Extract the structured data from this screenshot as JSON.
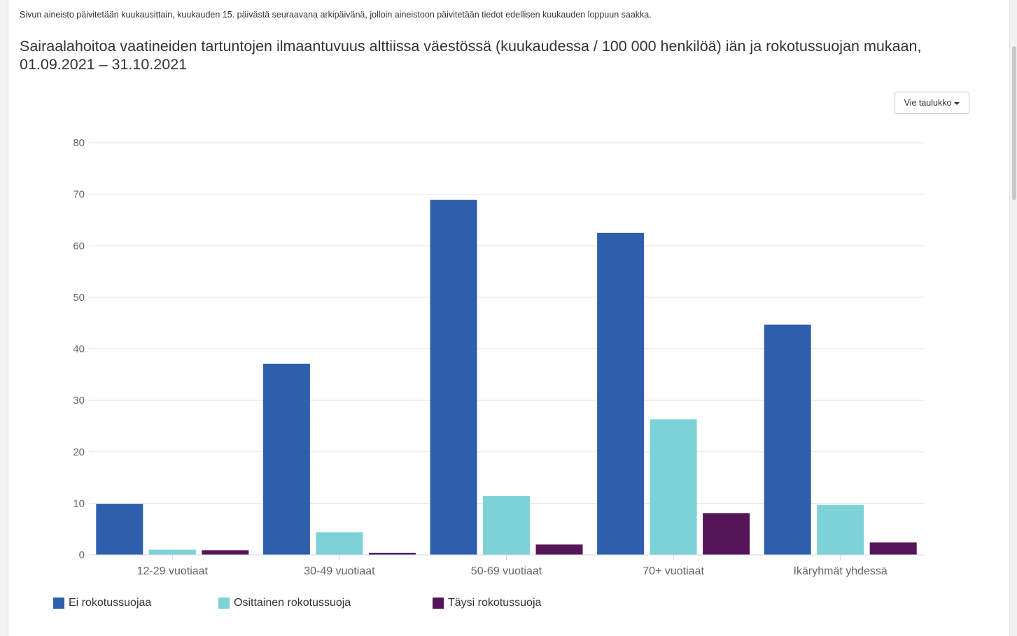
{
  "note": "Sivun aineisto päivitetään kuukausittain, kuukauden 15. päivästä seuraavana arkipäivänä, jolloin aineistoon päivitetään tiedot edellisen kuukauden loppuun saakka.",
  "title": "Sairaalahoitoa vaatineiden tartuntojen ilmaantuvuus alttiissa väestössä (kuukaudessa / 100 000 henkilöä) iän ja rokotussuojan mukaan, 01.09.2021 – 31.10.2021",
  "export_button": {
    "label": "Vie taulukko",
    "icon": "caret-down-icon"
  },
  "chart_data": {
    "type": "bar",
    "categories": [
      "12-29 vuotiaat",
      "30-49 vuotiaat",
      "50-69 vuotiaat",
      "70+ vuotiaat",
      "Ikäryhmät yhdessä"
    ],
    "series": [
      {
        "name": "Ei rokotussuojaa",
        "color": "#2f5fac",
        "values": [
          9.9,
          37.1,
          68.9,
          62.5,
          44.7
        ]
      },
      {
        "name": "Osittainen rokotussuoja",
        "color": "#7dd2d8",
        "values": [
          1.0,
          4.4,
          11.4,
          26.3,
          9.7
        ]
      },
      {
        "name": "Täysi rokotussuoja",
        "color": "#561558",
        "values": [
          0.9,
          0.4,
          2.0,
          8.1,
          2.4
        ]
      }
    ],
    "ylim": [
      0,
      80
    ],
    "yticks": [
      0,
      10,
      20,
      30,
      40,
      50,
      60,
      70,
      80
    ],
    "grid": true,
    "legend_position": "bottom-left",
    "title": "",
    "xlabel": "",
    "ylabel": ""
  }
}
